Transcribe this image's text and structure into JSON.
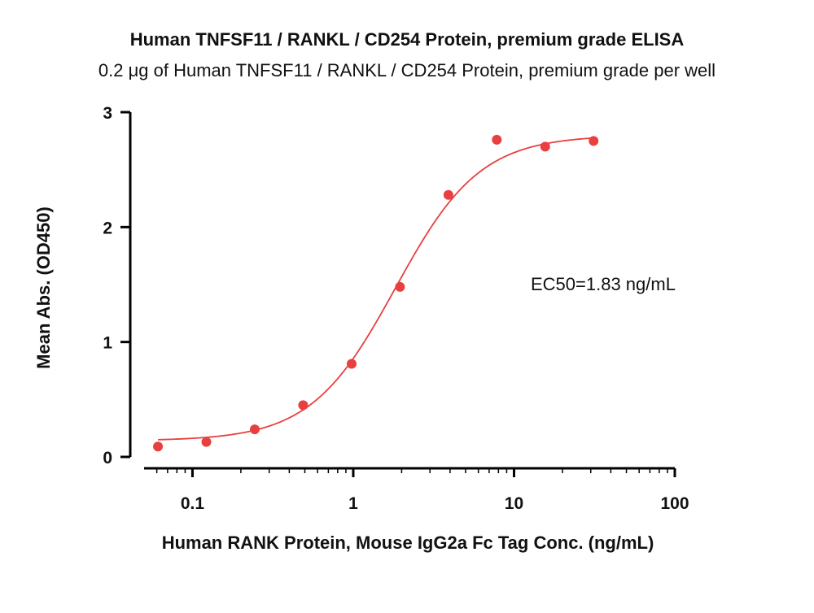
{
  "chart_data": {
    "type": "scatter",
    "title": "Human TNFSF11 / RANKL / CD254 Protein, premium grade ELISA",
    "subtitle": "0.2 μg of Human TNFSF11 / RANKL / CD254 Protein, premium grade per well",
    "xlabel": "Human RANK Protein, Mouse IgG2a Fc Tag Conc. (ng/mL)",
    "ylabel": "Mean Abs. (OD450)",
    "xscale": "log",
    "xlim": [
      0.05,
      100
    ],
    "ylim": [
      0,
      3
    ],
    "x_ticks": [
      0.1,
      1,
      10,
      100
    ],
    "x_tick_labels": [
      "0.1",
      "1",
      "10",
      "100"
    ],
    "y_ticks": [
      0,
      1,
      2,
      3
    ],
    "y_tick_labels": [
      "0",
      "1",
      "2",
      "3"
    ],
    "grid": false,
    "legend": "none",
    "annotation": "EC50=1.83 ng/mL",
    "series": [
      {
        "x": [
          0.061,
          0.122,
          0.244,
          0.488,
          0.977,
          1.953,
          3.906,
          7.813,
          15.625,
          31.25
        ],
        "y": [
          0.09,
          0.13,
          0.24,
          0.45,
          0.81,
          1.48,
          2.28,
          2.76,
          2.7,
          2.75
        ],
        "color": "#e8403f",
        "marker": "circle"
      }
    ],
    "fit": {
      "model": "4PL",
      "bottom": 0.14,
      "top": 2.8,
      "ec50": 1.83,
      "hill": 1.65,
      "x_range": [
        0.061,
        31.25
      ],
      "color": "#e8403f"
    }
  }
}
